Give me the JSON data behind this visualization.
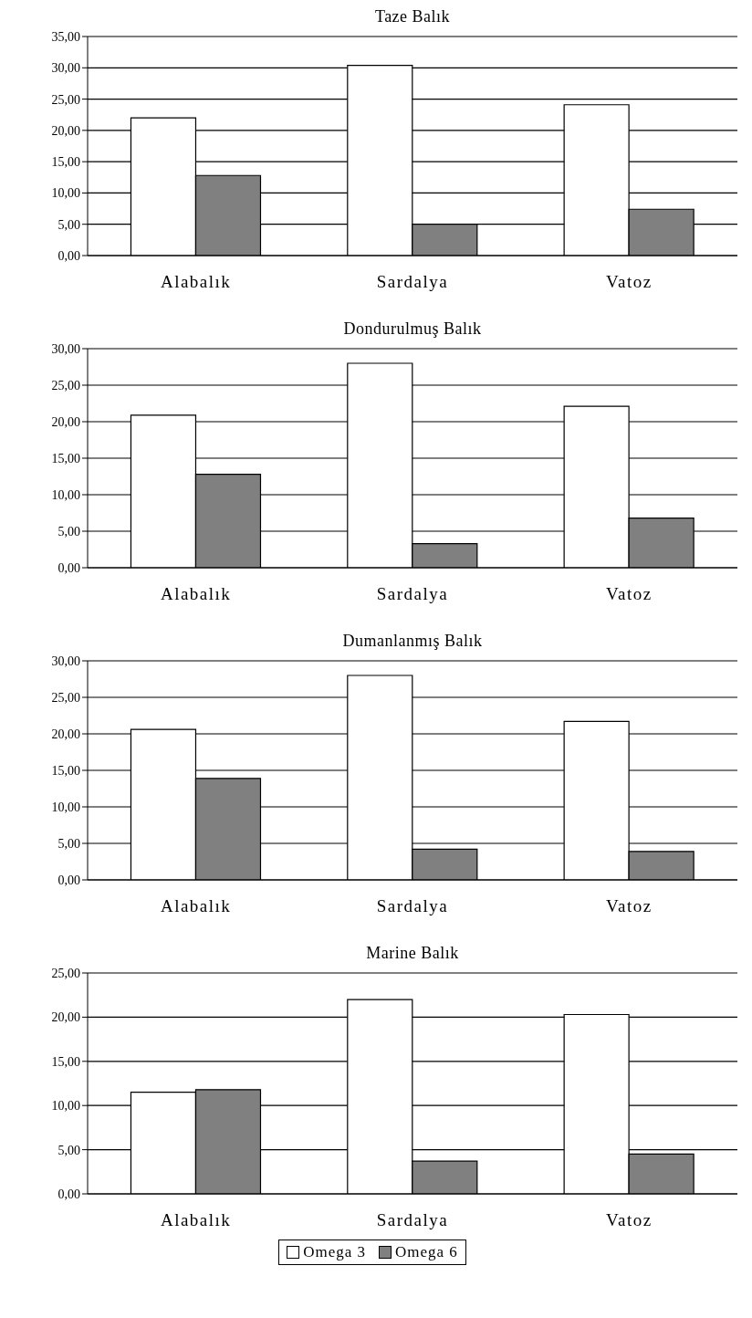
{
  "chart_data": [
    {
      "type": "bar",
      "title": "Taze Balık",
      "categories": [
        "Alabalık",
        "Sardalya",
        "Vatoz"
      ],
      "series": [
        {
          "color": "#ffffff",
          "values": [
            22.0,
            30.4,
            24.1
          ]
        },
        {
          "color": "#808080",
          "values": [
            12.8,
            5.0,
            7.4
          ]
        }
      ],
      "ylim": [
        0,
        35
      ],
      "yticks": [
        {
          "value": 0,
          "label": "0,00"
        },
        {
          "value": 5,
          "label": "5,00"
        },
        {
          "value": 10,
          "label": "10,00"
        },
        {
          "value": 15,
          "label": "15,00"
        },
        {
          "value": 20,
          "label": "20,00"
        },
        {
          "value": 25,
          "label": "25,00"
        },
        {
          "value": 30,
          "label": "30,00"
        },
        {
          "value": 35,
          "label": "35,00"
        }
      ],
      "grid": "y"
    },
    {
      "type": "bar",
      "title": "Dondurulmuş Balık",
      "categories": [
        "Alabalık",
        "Sardalya",
        "Vatoz"
      ],
      "series": [
        {
          "color": "#ffffff",
          "values": [
            20.9,
            28.0,
            22.1
          ]
        },
        {
          "color": "#808080",
          "values": [
            12.8,
            3.3,
            6.8
          ]
        }
      ],
      "ylim": [
        0,
        30
      ],
      "yticks": [
        {
          "value": 0,
          "label": "0,00"
        },
        {
          "value": 5,
          "label": "5,00"
        },
        {
          "value": 10,
          "label": "10,00"
        },
        {
          "value": 15,
          "label": "15,00"
        },
        {
          "value": 20,
          "label": "20,00"
        },
        {
          "value": 25,
          "label": "25,00"
        },
        {
          "value": 30,
          "label": "30,00"
        }
      ],
      "grid": "y"
    },
    {
      "type": "bar",
      "title": "Dumanlanmış Balık",
      "categories": [
        "Alabalık",
        "Sardalya",
        "Vatoz"
      ],
      "series": [
        {
          "color": "#ffffff",
          "values": [
            20.6,
            28.0,
            21.7
          ]
        },
        {
          "color": "#808080",
          "values": [
            13.9,
            4.2,
            3.9
          ]
        }
      ],
      "ylim": [
        0,
        30
      ],
      "yticks": [
        {
          "value": 0,
          "label": "0,00"
        },
        {
          "value": 5,
          "label": "5,00"
        },
        {
          "value": 10,
          "label": "10,00"
        },
        {
          "value": 15,
          "label": "15,00"
        },
        {
          "value": 20,
          "label": "20,00"
        },
        {
          "value": 25,
          "label": "25,00"
        },
        {
          "value": 30,
          "label": "30,00"
        }
      ],
      "grid": "y"
    },
    {
      "type": "bar",
      "title": "Marine Balık",
      "categories": [
        "Alabalık",
        "Sardalya",
        "Vatoz"
      ],
      "series": [
        {
          "name": "Omega 3",
          "color": "#ffffff",
          "values": [
            11.5,
            22.0,
            20.3
          ]
        },
        {
          "name": "Omega 6",
          "color": "#808080",
          "values": [
            11.8,
            3.7,
            4.5
          ]
        }
      ],
      "ylim": [
        0,
        25
      ],
      "yticks": [
        {
          "value": 0,
          "label": "0,00"
        },
        {
          "value": 5,
          "label": "5,00"
        },
        {
          "value": 10,
          "label": "10,00"
        },
        {
          "value": 15,
          "label": "15,00"
        },
        {
          "value": 20,
          "label": "20,00"
        },
        {
          "value": 25,
          "label": "25,00"
        }
      ],
      "grid": "y",
      "legend": "bottom"
    }
  ]
}
